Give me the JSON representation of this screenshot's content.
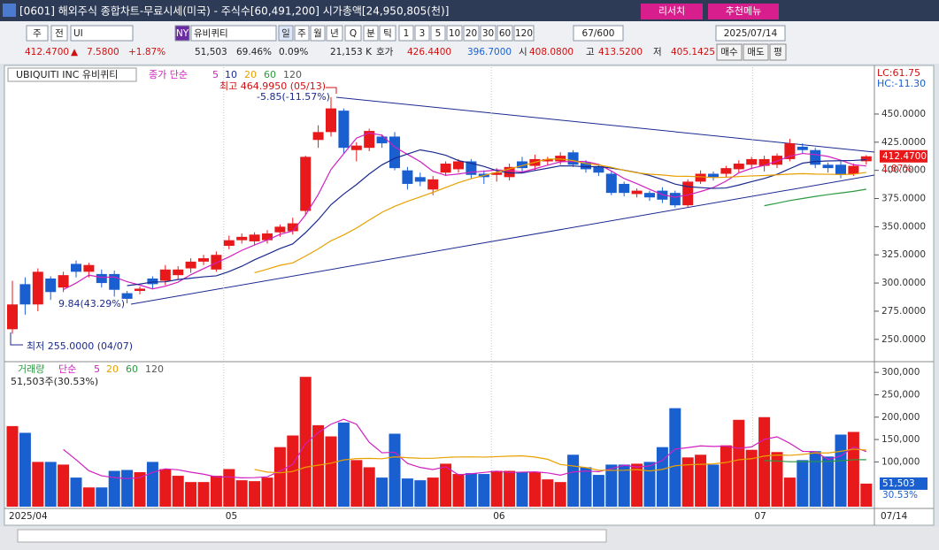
{
  "header": {
    "title": "[0601] 해외주식 종합차트-무료시세(미국) - 주식수[60,491,200] 시가총액[24,950,805(천)]",
    "buttons": [
      "리서치",
      "추천메뉴"
    ]
  },
  "toolbar": {
    "items": [
      "주",
      "전",
      "UI",
      "NY",
      "유비퀴티",
      "일",
      "주",
      "월",
      "년",
      "Q",
      "분",
      "틱",
      "1",
      "3",
      "5",
      "10",
      "20",
      "30",
      "60",
      "120",
      "67/600",
      "2025/07/14"
    ]
  },
  "quote": {
    "items": [
      "412.4700",
      "▲",
      "7.5800",
      "+1.87%",
      "51,503",
      "69.46%",
      "0.09%",
      "21,153 K",
      "호가",
      "426.4400",
      "396.7000",
      "시",
      "408.0800",
      "고",
      "413.5200",
      "저",
      "405.1425"
    ],
    "buttons": [
      "매수",
      "매도",
      "평"
    ]
  },
  "chart_data": [
    {
      "type": "candlestick",
      "title": "UBIQUITI INC  유비퀴티",
      "legend_label": "종가 단순",
      "ma_periods": [
        "5",
        "10",
        "20",
        "60",
        "120"
      ],
      "ma_colors": [
        "#d020c0",
        "#1a2a90",
        "#e8a000",
        "#2a9a40",
        "#555555"
      ],
      "up_color": "#e8191b",
      "down_color": "#1a5fd0",
      "annotations": {
        "high": "최고 464.9950 (05/13)",
        "high_change": "-5.85(-11.57%)",
        "low_change": "9.84(43.29%)",
        "low": "최저 255.0000 (04/07)",
        "lc": "LC:61.75",
        "hc": "HC:-11.30"
      },
      "last_label": "412.4700",
      "change_label": "1.87%",
      "open": [
        259,
        299,
        281,
        304,
        296,
        317,
        310,
        308,
        308,
        291,
        293,
        304,
        302,
        307,
        313,
        319,
        312,
        333,
        338,
        337,
        338,
        345,
        346,
        364,
        427,
        434,
        453,
        418,
        420,
        430,
        430,
        400,
        394,
        383,
        398,
        401,
        408,
        397,
        396,
        394,
        408,
        404,
        408,
        408,
        416,
        407,
        403,
        397,
        388,
        379,
        380,
        382,
        380,
        369,
        390,
        397,
        397,
        401,
        405,
        404,
        405,
        410,
        421,
        418,
        405,
        405,
        397,
        408.08
      ],
      "high": [
        302,
        305,
        313,
        306,
        310,
        320,
        318,
        312,
        311,
        293,
        297,
        306,
        316,
        315,
        322,
        325,
        328,
        342,
        344,
        345,
        347,
        352,
        358,
        413,
        440,
        465,
        455,
        425,
        437,
        432,
        434,
        403,
        398,
        395,
        408,
        410,
        410,
        400,
        402,
        406,
        412,
        414,
        412,
        416,
        418,
        409,
        405,
        399,
        390,
        384,
        382,
        385,
        382,
        392,
        400,
        399,
        404,
        409,
        412,
        413,
        415,
        428,
        424,
        420,
        407,
        408,
        406,
        413.52
      ],
      "low": [
        255,
        272,
        275,
        285,
        292,
        305,
        305,
        296,
        288,
        282,
        290,
        295,
        298,
        303,
        309,
        316,
        310,
        330,
        335,
        334,
        335,
        341,
        343,
        360,
        420,
        430,
        415,
        408,
        417,
        420,
        400,
        383,
        386,
        378,
        395,
        398,
        393,
        388,
        390,
        391,
        398,
        400,
        405,
        405,
        403,
        398,
        395,
        378,
        377,
        376,
        373,
        371,
        367,
        367,
        388,
        391,
        394,
        398,
        401,
        399,
        402,
        408,
        415,
        402,
        398,
        393,
        395,
        405.1425
      ],
      "close": [
        281,
        281,
        310,
        292,
        307,
        310,
        316,
        300,
        294,
        286,
        295,
        299,
        312,
        312,
        319,
        322,
        325,
        338,
        341,
        343,
        344,
        350,
        353,
        412,
        434,
        455,
        420,
        422,
        435,
        424,
        402,
        388,
        390,
        392,
        406,
        408,
        396,
        394,
        398,
        403,
        402,
        410,
        410,
        413,
        405,
        401,
        398,
        380,
        380,
        382,
        376,
        374,
        369,
        390,
        397,
        394,
        402,
        406,
        410,
        410,
        413,
        424,
        418,
        405,
        402,
        396,
        404,
        412.47
      ],
      "ylim": [
        231,
        490
      ],
      "yticks": [
        {
          "value": 250,
          "label": "250.0000"
        },
        {
          "value": 275,
          "label": "275.0000"
        },
        {
          "value": 300,
          "label": "300.0000"
        },
        {
          "value": 325,
          "label": "325.0000"
        },
        {
          "value": 350,
          "label": "350.0000"
        },
        {
          "value": 375,
          "label": "375.0000"
        },
        {
          "value": 400,
          "label": "400.0000"
        },
        {
          "value": 425,
          "label": "425.0000"
        },
        {
          "value": 450,
          "label": "450.0000"
        }
      ],
      "xticks": [
        {
          "value": 0,
          "label": "2025/04"
        },
        {
          "value": 17,
          "label": "05"
        },
        {
          "value": 38,
          "label": "06"
        },
        {
          "value": 58.5,
          "label": "07"
        },
        {
          "value": 68,
          "label": "07/14"
        }
      ]
    },
    {
      "type": "bar",
      "title": "거래량",
      "legend_label": "단순",
      "ma_periods": [
        "5",
        "20",
        "60",
        "120"
      ],
      "ma_colors": [
        "#d020c0",
        "#e8a000",
        "#2a9a40",
        "#555555"
      ],
      "summary": "51,503주(30.53%)",
      "last_label": "51,503",
      "change_label": "30.53%",
      "values": [
        180000,
        165000,
        100000,
        100000,
        94000,
        65000,
        43000,
        43000,
        80000,
        82000,
        77000,
        100000,
        84000,
        69000,
        55000,
        55000,
        69000,
        84000,
        59000,
        57000,
        65000,
        133000,
        159000,
        290000,
        182000,
        157000,
        188000,
        104000,
        88000,
        65000,
        163000,
        63000,
        59000,
        65000,
        96000,
        73000,
        75000,
        73000,
        80000,
        80000,
        78000,
        78000,
        61000,
        55000,
        116000,
        88000,
        71000,
        94000,
        94000,
        96000,
        100000,
        133000,
        220000,
        110000,
        116000,
        94000,
        137000,
        194000,
        127000,
        200000,
        122000,
        65000,
        104000,
        124000,
        112000,
        161000,
        167000,
        51503
      ],
      "ylim": [
        0,
        320000
      ],
      "yticks": [
        {
          "value": 100000,
          "label": "100,000"
        },
        {
          "value": 150000,
          "label": "150,000"
        },
        {
          "value": 200000,
          "label": "200,000"
        },
        {
          "value": 250000,
          "label": "250,000"
        },
        {
          "value": 300000,
          "label": "300,000"
        }
      ]
    }
  ]
}
